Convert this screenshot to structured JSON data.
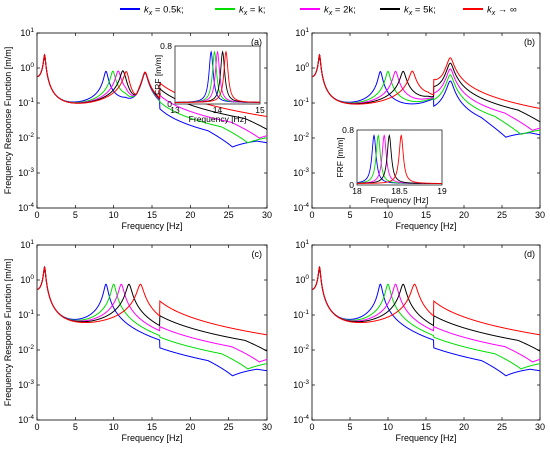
{
  "chart_data": {
    "type": "line",
    "legend": {
      "placement": "top",
      "entries": [
        {
          "label": "k_x = 0.5k;",
          "color": "#0000ff"
        },
        {
          "label": "k_x = k;",
          "color": "#00dd00"
        },
        {
          "label": "k_x = 2k;",
          "color": "#ff00ff"
        },
        {
          "label": "k_x = 5k;",
          "color": "#000000"
        },
        {
          "label": "k_x → ∞",
          "color": "#ff0000"
        }
      ]
    },
    "subplots": [
      {
        "label": "(a)",
        "xlabel": "Frequency [Hz]",
        "ylabel": "Frequency Response Function [m/m]",
        "xlim": [
          0,
          30
        ],
        "ylim": [
          0.0001,
          10
        ],
        "yscale": "log",
        "xticks": [
          0,
          5,
          10,
          15,
          20,
          25,
          30
        ],
        "yticks": [
          "10^-4",
          "10^-3",
          "10^-2",
          "10^-1",
          "10^0",
          "10^1"
        ],
        "antiresonance": 13.0,
        "second_mode": 14.1,
        "series_first_peaks": [
          9.0,
          9.9,
          10.6,
          11.2,
          11.7
        ],
        "inset": {
          "xlabel": "Frequency [Hz]",
          "ylabel": "FRF [m/m]",
          "xlim": [
            13,
            15
          ],
          "ylim": [
            0,
            0.8
          ],
          "xticks": [
            "13",
            "14",
            "15"
          ],
          "yticks": [
            "0",
            "0.8"
          ],
          "peaks": [
            13.85,
            13.93,
            14.0,
            14.12,
            14.2
          ]
        }
      },
      {
        "label": "(b)",
        "xlabel": "Frequency [Hz]",
        "ylabel": "",
        "xlim": [
          0,
          30
        ],
        "ylim": [
          0.0001,
          10
        ],
        "yscale": "log",
        "xticks": [
          0,
          5,
          10,
          15,
          20,
          25,
          30
        ],
        "yticks": [
          "10^-4",
          "10^-3",
          "10^-2",
          "10^-1",
          "10^0",
          "10^1"
        ],
        "antiresonance": 17.2,
        "second_mode": 18.2,
        "series_first_peaks": [
          9.0,
          10.0,
          11.0,
          12.0,
          13.2
        ],
        "inset": {
          "xlabel": "Frequency [Hz]",
          "ylabel": "FRF [m/m]",
          "xlim": [
            18,
            19
          ],
          "ylim": [
            0,
            0.8
          ],
          "xticks": [
            "18",
            "18.5",
            "19"
          ],
          "yticks": [
            "0",
            "0.8"
          ],
          "peaks": [
            18.2,
            18.25,
            18.32,
            18.38,
            18.52
          ]
        }
      },
      {
        "label": "(c)",
        "xlabel": "Frequency [Hz]",
        "ylabel": "Frequency Response Function [m/m]",
        "xlim": [
          0,
          30
        ],
        "ylim": [
          0.0001,
          10
        ],
        "yscale": "log",
        "xticks": [
          0,
          5,
          10,
          15,
          20,
          25,
          30
        ],
        "yticks": [
          "10^-4",
          "10^-3",
          "10^-2",
          "10^-1",
          "10^0",
          "10^1"
        ],
        "series_first_peaks": [
          9.0,
          10.0,
          11.0,
          12.0,
          13.5
        ]
      },
      {
        "label": "(d)",
        "xlabel": "Frequency [Hz]",
        "ylabel": "",
        "xlim": [
          0,
          30
        ],
        "ylim": [
          0.0001,
          10
        ],
        "yscale": "log",
        "xticks": [
          0,
          5,
          10,
          15,
          20,
          25,
          30
        ],
        "yticks": [
          "10^-4",
          "10^-3",
          "10^-2",
          "10^-1",
          "10^0",
          "10^1"
        ],
        "series_first_peaks": [
          9.0,
          10.0,
          11.0,
          12.0,
          13.5
        ]
      }
    ]
  }
}
